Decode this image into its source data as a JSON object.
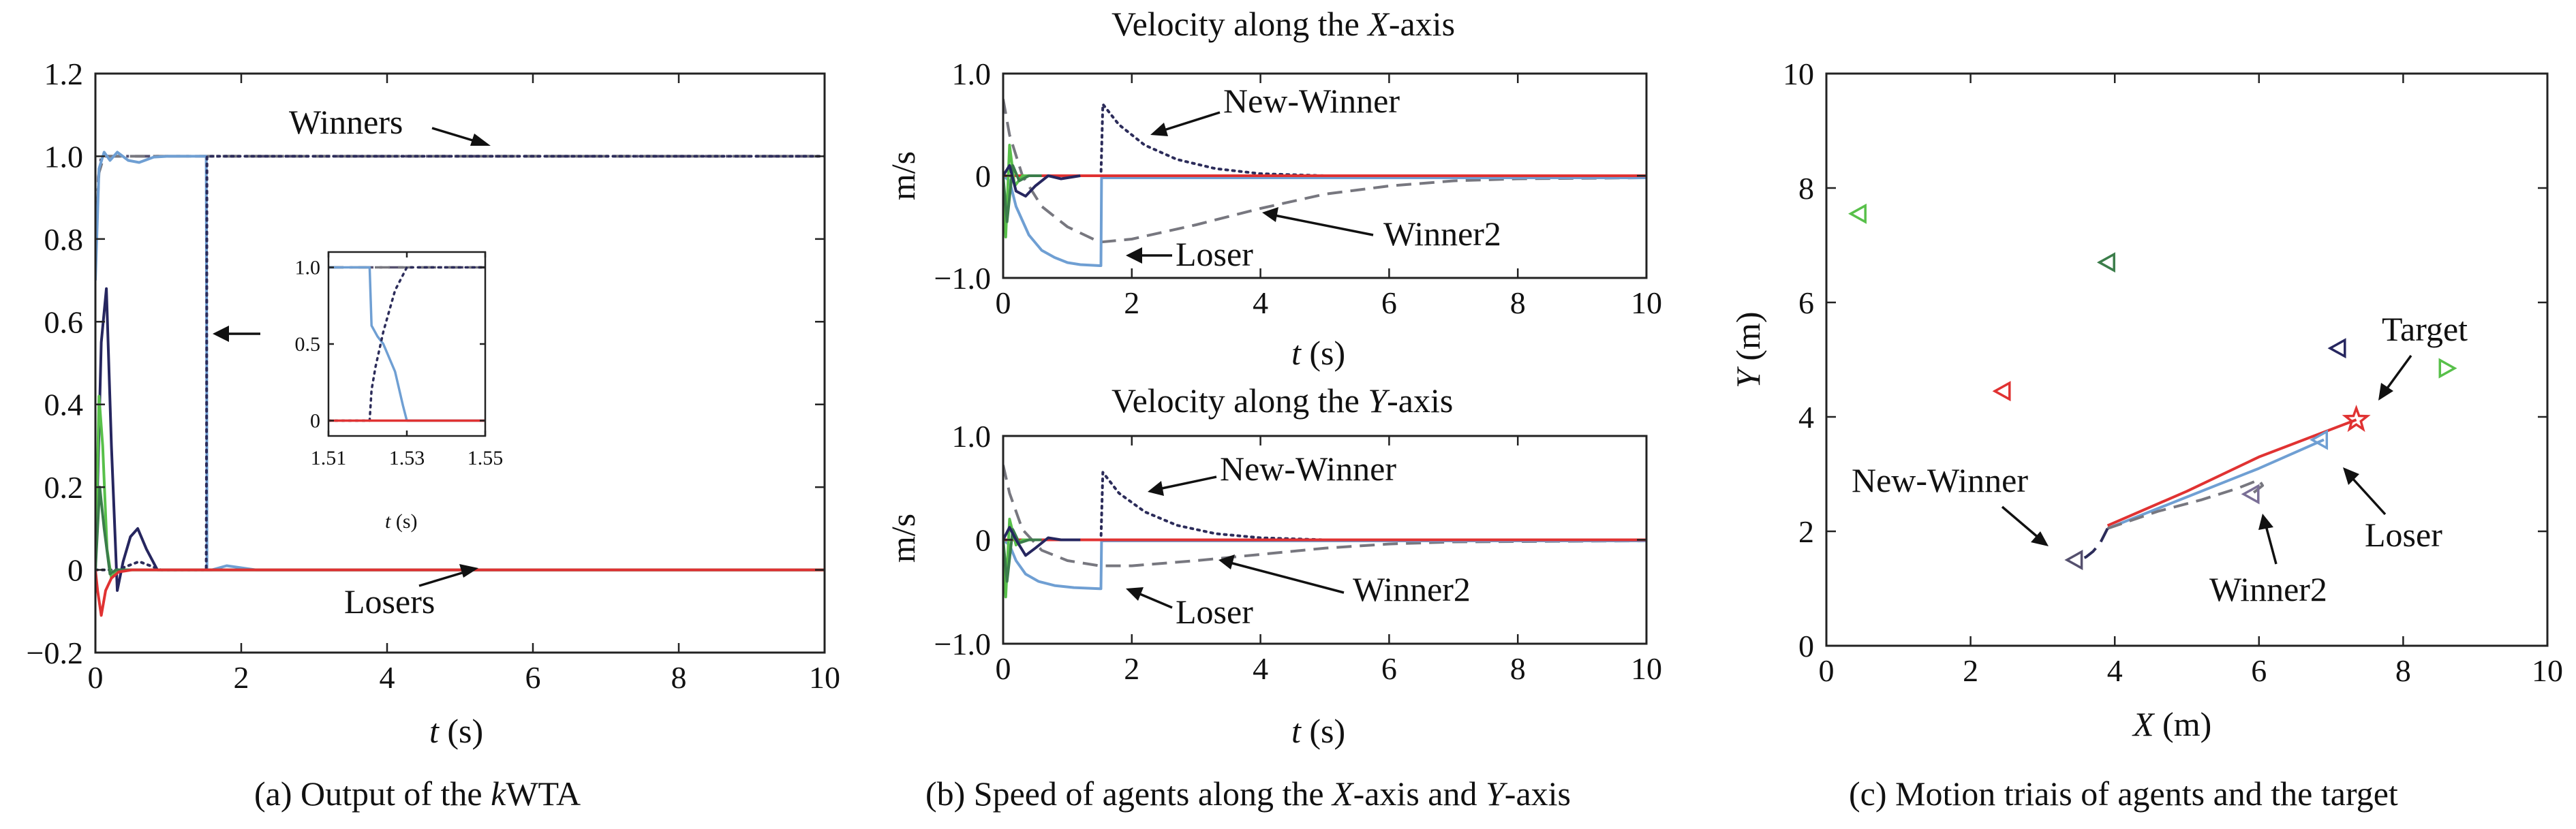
{
  "colors": {
    "winner_dashdot": "#55506e",
    "winner2_dashed": "#77777f",
    "new_winner_dotted": "#2c2c5a",
    "loser_blue": "#6f9fd3",
    "red": "#e03232",
    "green": "#58c04a",
    "dark_green": "#3b7d4a",
    "navy": "#26265f",
    "purple": "#7a6f96"
  },
  "chart_data": [
    {
      "id": "kwta",
      "type": "line",
      "caption": "(a) Output of the kWTA",
      "caption_parts": [
        "(a) Output of the ",
        "k",
        "WTA"
      ],
      "xlabel": "t (s)",
      "xlabel_parts": [
        "t",
        " (s)"
      ],
      "ylabel": "",
      "xlim": [
        0,
        10
      ],
      "ylim": [
        -0.2,
        1.2
      ],
      "xticks": [
        0,
        2,
        4,
        6,
        8,
        10
      ],
      "yticks": [
        -0.2,
        0,
        0.2,
        0.4,
        0.6,
        0.8,
        1.0,
        1.2
      ],
      "ytick_labels": [
        "−0.2",
        "0",
        "0.2",
        "0.4",
        "0.6",
        "0.8",
        "1.0",
        "1.2"
      ],
      "xtick_labels": [
        "0",
        "2",
        "4",
        "6",
        "8",
        "10"
      ],
      "annotations": [
        "Winners",
        "Losers"
      ],
      "series": [
        {
          "style": "dashdot",
          "color": "#55506e",
          "x": [
            0,
            0.04,
            0.08,
            0.15,
            10
          ],
          "y": [
            0.72,
            0.95,
            1.0,
            1.0,
            1.0
          ]
        },
        {
          "style": "dashed",
          "color": "#77777f",
          "x": [
            0,
            0.05,
            0.1,
            0.2,
            10
          ],
          "y": [
            0.78,
            0.96,
            0.99,
            1.0,
            1.0
          ]
        },
        {
          "style": "solid",
          "color": "#6f9fd3",
          "x": [
            0,
            0.05,
            0.12,
            0.2,
            0.3,
            0.45,
            0.6,
            0.8,
            1.0,
            1.3,
            1.52,
            1.525,
            1.53,
            1.6,
            1.8,
            2.2,
            10
          ],
          "y": [
            0.7,
            0.97,
            1.01,
            0.99,
            1.01,
            0.99,
            0.985,
            0.998,
            1.0,
            1.0,
            1.0,
            0.6,
            0.0,
            0.0,
            0.01,
            0.0,
            0.0
          ]
        },
        {
          "style": "dotted",
          "color": "#2c2c5a",
          "x": [
            0,
            0.3,
            0.6,
            0.9,
            1.2,
            1.52,
            1.525,
            1.53,
            1.6,
            10
          ],
          "y": [
            0.0,
            0.0,
            0.02,
            0.0,
            0.0,
            0.0,
            0.4,
            1.0,
            1.0,
            1.0
          ]
        },
        {
          "style": "solid",
          "color": "#26265f",
          "x": [
            0,
            0.08,
            0.15,
            0.22,
            0.3,
            0.38,
            0.48,
            0.58,
            0.7,
            0.85,
            1.0,
            10
          ],
          "y": [
            0.0,
            0.55,
            0.68,
            0.3,
            -0.05,
            0.02,
            0.08,
            0.1,
            0.05,
            0.0,
            0.0,
            0.0
          ]
        },
        {
          "style": "solid",
          "color": "#58c04a",
          "x": [
            0,
            0.05,
            0.1,
            0.16,
            0.22,
            0.3,
            0.45,
            10
          ],
          "y": [
            0.0,
            0.42,
            0.3,
            0.05,
            -0.02,
            0.0,
            0.0,
            0.0
          ]
        },
        {
          "style": "solid",
          "color": "#3b7d4a",
          "x": [
            0,
            0.06,
            0.12,
            0.2,
            0.28,
            0.4,
            10
          ],
          "y": [
            0.0,
            0.2,
            0.1,
            -0.01,
            0.0,
            0.0,
            0.0
          ]
        },
        {
          "style": "solid",
          "color": "#e03232",
          "x": [
            0,
            0.03,
            0.08,
            0.14,
            0.22,
            0.32,
            0.5,
            1.0,
            10
          ],
          "y": [
            0.0,
            -0.05,
            -0.11,
            -0.05,
            -0.02,
            -0.005,
            0.0,
            0.0,
            0.0
          ]
        }
      ],
      "inset": {
        "xlim": [
          1.51,
          1.55
        ],
        "ylim": [
          -0.1,
          1.1
        ],
        "xticks": [
          1.51,
          1.53,
          1.55
        ],
        "xtick_labels": [
          "1.51",
          "1.53",
          "1.55"
        ],
        "yticks": [
          0,
          0.5,
          1.0
        ],
        "ytick_labels": [
          "0",
          "0.5",
          "1.0"
        ],
        "xlabel_parts": [
          "t",
          " (s)"
        ],
        "series": [
          {
            "style": "dashdot",
            "color": "#55506e",
            "x": [
              1.51,
              1.55
            ],
            "y": [
              1.0,
              1.0
            ]
          },
          {
            "style": "dashed",
            "color": "#77777f",
            "x": [
              1.51,
              1.55
            ],
            "y": [
              1.0,
              1.0
            ]
          },
          {
            "style": "solid",
            "color": "#6f9fd3",
            "x": [
              1.51,
              1.5205,
              1.521,
              1.5225,
              1.524,
              1.527,
              1.529,
              1.53,
              1.535,
              1.55
            ],
            "y": [
              1.0,
              1.0,
              0.62,
              0.55,
              0.5,
              0.32,
              0.1,
              0.0,
              0.0,
              0.0
            ]
          },
          {
            "style": "dotted",
            "color": "#2c2c5a",
            "x": [
              1.51,
              1.5205,
              1.521,
              1.522,
              1.524,
              1.527,
              1.53,
              1.55
            ],
            "y": [
              0.0,
              0.0,
              0.2,
              0.35,
              0.58,
              0.85,
              1.0,
              1.0
            ]
          },
          {
            "style": "solid",
            "color": "#e03232",
            "x": [
              1.51,
              1.55
            ],
            "y": [
              0.0,
              0.0
            ]
          }
        ]
      }
    },
    {
      "id": "vx",
      "type": "line",
      "title_parts": [
        "Velocity along the ",
        "X",
        "-axis"
      ],
      "xlabel_parts": [
        "t",
        " (s)"
      ],
      "ylabel": "m/s",
      "xlim": [
        0,
        10
      ],
      "ylim": [
        -1.0,
        1.0
      ],
      "xticks": [
        0,
        2,
        4,
        6,
        8,
        10
      ],
      "xtick_labels": [
        "0",
        "2",
        "4",
        "6",
        "8",
        "10"
      ],
      "yticks": [
        -1.0,
        0,
        1.0
      ],
      "ytick_labels": [
        "−1.0",
        "0",
        "1.0"
      ],
      "annotations": [
        "New-Winner",
        "Winner2",
        "Loser"
      ],
      "series": [
        {
          "style": "dotted",
          "color": "#2c2c5a",
          "x": [
            0,
            1.52,
            1.55,
            1.8,
            2.2,
            2.7,
            3.3,
            4.0,
            5.0,
            6.5,
            10
          ],
          "y": [
            0.0,
            0.0,
            0.7,
            0.5,
            0.3,
            0.16,
            0.07,
            0.02,
            0.0,
            -0.02,
            -0.02
          ]
        },
        {
          "style": "dashed",
          "color": "#77777f",
          "x": [
            0,
            0.1,
            0.3,
            0.6,
            1.0,
            1.5,
            2.0,
            3.0,
            4.0,
            5.0,
            6.0,
            7.0,
            8.0,
            10
          ],
          "y": [
            0.75,
            0.4,
            0.0,
            -0.3,
            -0.5,
            -0.65,
            -0.62,
            -0.48,
            -0.32,
            -0.18,
            -0.1,
            -0.05,
            -0.03,
            -0.02
          ]
        },
        {
          "style": "solid",
          "color": "#6f9fd3",
          "x": [
            0,
            0.1,
            0.2,
            0.4,
            0.6,
            0.8,
            1.0,
            1.2,
            1.5,
            1.52,
            1.53,
            2.0,
            10
          ],
          "y": [
            0.0,
            -0.05,
            -0.3,
            -0.58,
            -0.73,
            -0.8,
            -0.85,
            -0.87,
            -0.88,
            -0.88,
            -0.02,
            -0.02,
            -0.02
          ]
        },
        {
          "style": "solid",
          "color": "#e03232",
          "x": [
            0,
            10
          ],
          "y": [
            0.0,
            0.0
          ]
        },
        {
          "style": "solid",
          "color": "#58c04a",
          "x": [
            0,
            0.04,
            0.1,
            0.18,
            0.3,
            0.5
          ],
          "y": [
            0.0,
            -0.6,
            0.3,
            -0.1,
            0.0,
            0.0
          ]
        },
        {
          "style": "solid",
          "color": "#3b7d4a",
          "x": [
            0,
            0.06,
            0.15,
            0.25,
            0.4,
            0.6
          ],
          "y": [
            0.0,
            -0.45,
            0.1,
            -0.05,
            0.0,
            0.0
          ]
        },
        {
          "style": "solid",
          "color": "#26265f",
          "x": [
            0,
            0.1,
            0.2,
            0.35,
            0.5,
            0.7,
            0.9,
            1.2
          ],
          "y": [
            0.0,
            0.1,
            -0.15,
            -0.2,
            -0.1,
            0.0,
            -0.03,
            0.0
          ]
        }
      ]
    },
    {
      "id": "vy",
      "type": "line",
      "title_parts": [
        "Velocity along the ",
        "Y",
        "-axis"
      ],
      "xlabel_parts": [
        "t",
        " (s)"
      ],
      "ylabel": "m/s",
      "xlim": [
        0,
        10
      ],
      "ylim": [
        -1.0,
        1.0
      ],
      "xticks": [
        0,
        2,
        4,
        6,
        8,
        10
      ],
      "xtick_labels": [
        "0",
        "2",
        "4",
        "6",
        "8",
        "10"
      ],
      "yticks": [
        -1.0,
        0,
        1.0
      ],
      "ytick_labels": [
        "−1.0",
        "0",
        "1.0"
      ],
      "annotations": [
        "New-Winner",
        "Winner2",
        "Loser"
      ],
      "series": [
        {
          "style": "dotted",
          "color": "#2c2c5a",
          "x": [
            0,
            1.52,
            1.55,
            1.8,
            2.2,
            2.7,
            3.3,
            4.0,
            5.0,
            6.5,
            10
          ],
          "y": [
            0.0,
            0.0,
            0.65,
            0.45,
            0.27,
            0.14,
            0.06,
            0.02,
            0.0,
            -0.01,
            -0.01
          ]
        },
        {
          "style": "dashed",
          "color": "#77777f",
          "x": [
            0,
            0.1,
            0.3,
            0.6,
            1.0,
            1.5,
            2.0,
            3.0,
            4.0,
            5.0,
            6.0,
            7.0,
            10
          ],
          "y": [
            0.72,
            0.45,
            0.1,
            -0.1,
            -0.2,
            -0.25,
            -0.25,
            -0.2,
            -0.14,
            -0.08,
            -0.04,
            -0.02,
            -0.01
          ]
        },
        {
          "style": "solid",
          "color": "#6f9fd3",
          "x": [
            0,
            0.1,
            0.2,
            0.35,
            0.55,
            0.8,
            1.1,
            1.5,
            1.52,
            1.53,
            2.0,
            10
          ],
          "y": [
            0.0,
            -0.05,
            -0.2,
            -0.33,
            -0.4,
            -0.44,
            -0.46,
            -0.47,
            -0.47,
            -0.01,
            -0.01,
            -0.01
          ]
        },
        {
          "style": "solid",
          "color": "#e03232",
          "x": [
            0,
            10
          ],
          "y": [
            0.0,
            0.0
          ]
        },
        {
          "style": "solid",
          "color": "#58c04a",
          "x": [
            0,
            0.04,
            0.1,
            0.2,
            0.3,
            0.5
          ],
          "y": [
            0.0,
            -0.55,
            0.2,
            -0.05,
            0.0,
            0.0
          ]
        },
        {
          "style": "solid",
          "color": "#3b7d4a",
          "x": [
            0,
            0.06,
            0.15,
            0.25,
            0.4,
            0.6
          ],
          "y": [
            0.0,
            -0.4,
            0.1,
            -0.03,
            0.0,
            0.0
          ]
        },
        {
          "style": "solid",
          "color": "#26265f",
          "x": [
            0,
            0.1,
            0.2,
            0.35,
            0.5,
            0.7,
            0.9,
            1.2
          ],
          "y": [
            0.0,
            0.12,
            0.0,
            -0.15,
            -0.08,
            0.02,
            0.0,
            0.0
          ]
        }
      ]
    },
    {
      "id": "traj",
      "type": "scatter",
      "caption_parts": [
        "(c) Motion triais of agents and the target"
      ],
      "xlabel_parts": [
        "X",
        " (m)"
      ],
      "ylabel_parts": [
        "Y",
        " (m)"
      ],
      "xlim": [
        0,
        10
      ],
      "ylim": [
        0,
        10
      ],
      "xticks": [
        0,
        2,
        4,
        6,
        8,
        10
      ],
      "xtick_labels": [
        "0",
        "2",
        "4",
        "6",
        "8",
        "10"
      ],
      "yticks": [
        0,
        2,
        4,
        6,
        8,
        10
      ],
      "ytick_labels": [
        "0",
        "2",
        "4",
        "6",
        "8",
        "10"
      ],
      "annotations": [
        "Target",
        "New-Winner",
        "Loser",
        "Winner2"
      ],
      "markers": [
        {
          "x": 0.45,
          "y": 7.55,
          "color": "#58c04a",
          "dir": "left"
        },
        {
          "x": 3.9,
          "y": 6.7,
          "color": "#3b7d4a",
          "dir": "left"
        },
        {
          "x": 2.45,
          "y": 4.45,
          "color": "#e03232",
          "dir": "left"
        },
        {
          "x": 8.6,
          "y": 4.85,
          "color": "#58c04a",
          "dir": "right"
        },
        {
          "x": 7.1,
          "y": 5.2,
          "color": "#26265f",
          "dir": "left"
        },
        {
          "x": 6.85,
          "y": 3.6,
          "color": "#6f9fd3",
          "dir": "left"
        },
        {
          "x": 5.9,
          "y": 2.65,
          "color": "#7a6f96",
          "dir": "left"
        },
        {
          "x": 3.45,
          "y": 1.5,
          "color": "#55506e",
          "dir": "left"
        }
      ],
      "target": {
        "x": 7.35,
        "y": 3.95,
        "color": "#e03232"
      },
      "paths": [
        {
          "style": "solid",
          "color": "#e03232",
          "x": [
            3.9,
            5.0,
            6.0,
            7.35
          ],
          "y": [
            2.1,
            2.7,
            3.3,
            3.95
          ]
        },
        {
          "style": "solid",
          "color": "#6f9fd3",
          "x": [
            3.9,
            5.0,
            6.0,
            6.9
          ],
          "y": [
            2.05,
            2.6,
            3.1,
            3.6
          ]
        },
        {
          "style": "dashed",
          "color": "#77777f",
          "x": [
            3.9,
            4.6,
            5.2,
            5.7,
            6.0,
            6.05,
            5.9
          ],
          "y": [
            2.05,
            2.35,
            2.55,
            2.75,
            2.9,
            2.8,
            2.65
          ]
        },
        {
          "style": "dashed",
          "color": "#2c2c5a",
          "x": [
            3.9,
            3.8,
            3.7,
            3.6,
            3.5
          ],
          "y": [
            2.05,
            1.8,
            1.65,
            1.55,
            1.5
          ]
        }
      ]
    }
  ]
}
